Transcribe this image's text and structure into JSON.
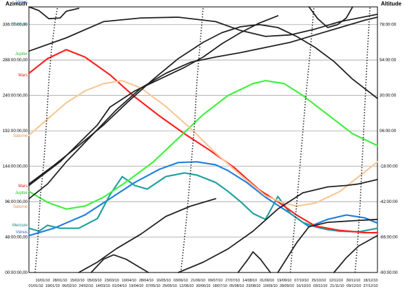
{
  "titles": {
    "left": "Azimuth",
    "right": "Altitude"
  },
  "chart_data": {
    "type": "line",
    "y_left_ticks": [
      "00:00:00,00",
      "48:00:00,00",
      "96:00:00,00",
      "144:00:00,00",
      "192:00:00,00",
      "240:00:00,00",
      "288:00:00,00",
      "336:00:00,00"
    ],
    "y_right_ticks": [
      "-90:00:00",
      "-66:00:00",
      "-42:00:00",
      "-18:00:00",
      "06:00:00",
      "30:00:00",
      "54:00:00",
      "78:00:00"
    ],
    "x_ticks_top": [
      "10/01/10",
      "28/01/10",
      "15/02/10",
      "05/03/10",
      "23/03/10",
      "10/04/10",
      "28/04/10",
      "16/05/10",
      "03/06/10",
      "21/06/10",
      "09/07/10",
      "27/07/10",
      "14/08/10",
      "01/09/10",
      "19/09/10",
      "07/10/10",
      "25/10/10",
      "12/11/10",
      "30/11/10",
      "18/12/10"
    ],
    "x_ticks_bottom": [
      "01/01/10",
      "19/01/10",
      "06/02/10",
      "24/02/10",
      "14/03/10",
      "01/04/10",
      "19/04/10",
      "07/05/10",
      "25/05/10",
      "12/06/10",
      "30/06/10",
      "18/07/10",
      "05/08/10",
      "23/08/10",
      "10/09/10",
      "28/09/10",
      "16/10/10",
      "03/11/10",
      "21/11/10",
      "09/12/10",
      "27/12/10"
    ],
    "left_labels": [
      {
        "text": "Vénus",
        "color": "#3060c0"
      },
      {
        "text": "Mercure",
        "color": "#208080"
      },
      {
        "text": "Jupiter",
        "color": "#30c030"
      },
      {
        "text": "Mars",
        "color": "#e02020"
      },
      {
        "text": "Saturne",
        "color": "#e09050"
      },
      {
        "text": "Mars",
        "color": "#e02020"
      },
      {
        "text": "Jupiter",
        "color": "#30c030"
      },
      {
        "text": "Saturne",
        "color": "#e09050"
      },
      {
        "text": "Mercure",
        "color": "#208080"
      },
      {
        "text": "Vénus",
        "color": "#3060c0"
      }
    ],
    "series": [
      {
        "color": "#2080e0",
        "points": [
          [
            0,
            50
          ],
          [
            20,
            60
          ],
          [
            45,
            78
          ],
          [
            65,
            100
          ],
          [
            85,
            122
          ],
          [
            105,
            140
          ],
          [
            120,
            149
          ],
          [
            135,
            150
          ],
          [
            150,
            146
          ],
          [
            160,
            138
          ],
          [
            175,
            122
          ],
          [
            190,
            102
          ],
          [
            210,
            80
          ],
          [
            225,
            62
          ],
          [
            240,
            72
          ],
          [
            255,
            78
          ],
          [
            270,
            74
          ],
          [
            280,
            67
          ]
        ]
      },
      {
        "color": "#20a0a0",
        "points": [
          [
            0,
            60
          ],
          [
            8,
            56
          ],
          [
            15,
            64
          ],
          [
            25,
            60
          ],
          [
            40,
            60
          ],
          [
            55,
            73
          ],
          [
            65,
            105
          ],
          [
            75,
            130
          ],
          [
            85,
            118
          ],
          [
            95,
            113
          ],
          [
            110,
            130
          ],
          [
            125,
            135
          ],
          [
            135,
            132
          ],
          [
            150,
            122
          ],
          [
            160,
            110
          ],
          [
            170,
            96
          ],
          [
            180,
            80
          ],
          [
            190,
            72
          ],
          [
            200,
            103
          ],
          [
            210,
            80
          ],
          [
            220,
            68
          ],
          [
            230,
            62
          ],
          [
            240,
            58
          ],
          [
            250,
            56
          ],
          [
            265,
            55
          ],
          [
            280,
            60
          ]
        ]
      },
      {
        "color": "#ff2020",
        "points": [
          [
            0,
            270
          ],
          [
            15,
            290
          ],
          [
            30,
            302
          ],
          [
            45,
            292
          ],
          [
            65,
            268
          ],
          [
            85,
            238
          ],
          [
            105,
            212
          ],
          [
            125,
            188
          ],
          [
            145,
            166
          ],
          [
            165,
            142
          ],
          [
            185,
            112
          ],
          [
            200,
            96
          ],
          [
            215,
            78
          ],
          [
            230,
            63
          ],
          [
            250,
            57
          ],
          [
            270,
            54
          ],
          [
            280,
            54
          ]
        ]
      },
      {
        "color": "#40f040",
        "points": [
          [
            0,
            110
          ],
          [
            15,
            95
          ],
          [
            30,
            86
          ],
          [
            45,
            90
          ],
          [
            60,
            102
          ],
          [
            80,
            125
          ],
          [
            100,
            150
          ],
          [
            120,
            182
          ],
          [
            140,
            214
          ],
          [
            160,
            240
          ],
          [
            180,
            256
          ],
          [
            190,
            260
          ],
          [
            205,
            256
          ],
          [
            220,
            240
          ],
          [
            240,
            214
          ],
          [
            260,
            188
          ],
          [
            280,
            172
          ]
        ]
      },
      {
        "color": "#f8c898",
        "points": [
          [
            0,
            186
          ],
          [
            15,
            208
          ],
          [
            30,
            230
          ],
          [
            45,
            246
          ],
          [
            60,
            256
          ],
          [
            75,
            260
          ],
          [
            90,
            250
          ],
          [
            110,
            225
          ],
          [
            130,
            195
          ],
          [
            150,
            162
          ],
          [
            170,
            132
          ],
          [
            190,
            104
          ],
          [
            205,
            94
          ],
          [
            215,
            90
          ],
          [
            230,
            94
          ],
          [
            250,
            110
          ],
          [
            265,
            130
          ],
          [
            280,
            150
          ]
        ]
      },
      {
        "color": "#202020",
        "points": [
          [
            0,
            300
          ],
          [
            30,
            318
          ],
          [
            60,
            340
          ],
          [
            90,
            345
          ],
          [
            120,
            346
          ],
          [
            150,
            340
          ],
          [
            170,
            328
          ],
          [
            190,
            320
          ],
          [
            210,
            322
          ],
          [
            230,
            330
          ],
          [
            250,
            340
          ],
          [
            265,
            345
          ],
          [
            280,
            350
          ]
        ]
      },
      {
        "color": "#202020",
        "points": [
          [
            0,
            100
          ],
          [
            15,
            120
          ],
          [
            30,
            150
          ],
          [
            50,
            185
          ],
          [
            70,
            220
          ],
          [
            90,
            250
          ],
          [
            110,
            270
          ],
          [
            130,
            285
          ],
          [
            150,
            292
          ],
          [
            170,
            298
          ],
          [
            190,
            305
          ],
          [
            210,
            312
          ],
          [
            230,
            322
          ],
          [
            250,
            332
          ],
          [
            270,
            342
          ],
          [
            280,
            346
          ]
        ]
      },
      {
        "color": "#202020",
        "points": [
          [
            0,
            120
          ],
          [
            20,
            145
          ],
          [
            40,
            172
          ],
          [
            60,
            200
          ],
          [
            80,
            232
          ],
          [
            100,
            262
          ],
          [
            120,
            290
          ],
          [
            140,
            312
          ],
          [
            155,
            325
          ],
          [
            170,
            333
          ],
          [
            185,
            336
          ],
          [
            200,
            332
          ],
          [
            215,
            320
          ],
          [
            230,
            305
          ],
          [
            245,
            286
          ],
          [
            260,
            262
          ],
          [
            280,
            236
          ]
        ]
      },
      {
        "color": "#202020",
        "points": [
          [
            0,
            118
          ],
          [
            25,
            150
          ],
          [
            40,
            175
          ],
          [
            55,
            200
          ],
          [
            65,
            224
          ],
          [
            85,
            246
          ],
          [
            105,
            262
          ],
          [
            125,
            278
          ],
          [
            140,
            292
          ],
          [
            155,
            310
          ],
          [
            170,
            325
          ],
          [
            185,
            338
          ],
          [
            200,
            348
          ]
        ]
      },
      {
        "color": "#202020",
        "points": [
          [
            0,
            360
          ],
          [
            8,
            355
          ],
          [
            16,
            344
          ],
          [
            25,
            345
          ],
          [
            30,
            354
          ],
          [
            40,
            358
          ]
        ]
      },
      {
        "color": "#202020",
        "points": [
          [
            120,
            0
          ],
          [
            140,
            14
          ],
          [
            160,
            32
          ],
          [
            180,
            56
          ],
          [
            200,
            86
          ],
          [
            220,
            108
          ],
          [
            240,
            116
          ],
          [
            255,
            118
          ],
          [
            265,
            120
          ],
          [
            280,
            126
          ]
        ]
      },
      {
        "color": "#202020",
        "points": [
          [
            40,
            0
          ],
          [
            55,
            14
          ],
          [
            70,
            32
          ],
          [
            90,
            52
          ],
          [
            110,
            76
          ],
          [
            130,
            90
          ],
          [
            150,
            100
          ]
        ]
      },
      {
        "color": "#202020",
        "points": [
          [
            50,
            0
          ],
          [
            60,
            18
          ],
          [
            68,
            24
          ],
          [
            78,
            18
          ],
          [
            90,
            6
          ],
          [
            96,
            0
          ]
        ]
      },
      {
        "color": "#202020",
        "points": [
          [
            168,
            0
          ],
          [
            176,
            18
          ],
          [
            180,
            28
          ],
          [
            186,
            18
          ],
          [
            194,
            0
          ]
        ]
      },
      {
        "color": "#202020",
        "points": [
          [
            200,
            0
          ],
          [
            215,
            40
          ],
          [
            225,
            62
          ],
          [
            240,
            68
          ],
          [
            260,
            70
          ],
          [
            280,
            72
          ]
        ]
      },
      {
        "color": "#202020",
        "points": [
          [
            245,
            0
          ],
          [
            255,
            20
          ],
          [
            265,
            36
          ],
          [
            280,
            50
          ]
        ]
      },
      {
        "color": "#202020",
        "points": [
          [
            225,
            360
          ],
          [
            232,
            344
          ],
          [
            240,
            332
          ],
          [
            248,
            336
          ],
          [
            255,
            345
          ],
          [
            260,
            360
          ]
        ]
      }
    ],
    "dotted_series": [
      {
        "color": "#202020",
        "points": [
          [
            5,
            0
          ],
          [
            7,
            40
          ],
          [
            9,
            100
          ],
          [
            12,
            150
          ],
          [
            14,
            200
          ],
          [
            16,
            260
          ],
          [
            18,
            300
          ],
          [
            21,
            340
          ],
          [
            23,
            360
          ]
        ]
      },
      {
        "color": "#202020",
        "points": [
          [
            122,
            0
          ],
          [
            124,
            30
          ],
          [
            127,
            80
          ],
          [
            130,
            140
          ],
          [
            133,
            200
          ],
          [
            135,
            260
          ],
          [
            138,
            320
          ],
          [
            140,
            360
          ]
        ]
      },
      {
        "color": "#202020",
        "points": [
          [
            210,
            0
          ],
          [
            212,
            40
          ],
          [
            215,
            90
          ],
          [
            218,
            150
          ],
          [
            222,
            230
          ],
          [
            226,
            300
          ],
          [
            229,
            360
          ]
        ]
      },
      {
        "color": "#202020",
        "points": [
          [
            262,
            0
          ],
          [
            264,
            40
          ],
          [
            266,
            90
          ],
          [
            268,
            160
          ],
          [
            270,
            230
          ],
          [
            272,
            300
          ],
          [
            274,
            360
          ]
        ]
      }
    ]
  }
}
